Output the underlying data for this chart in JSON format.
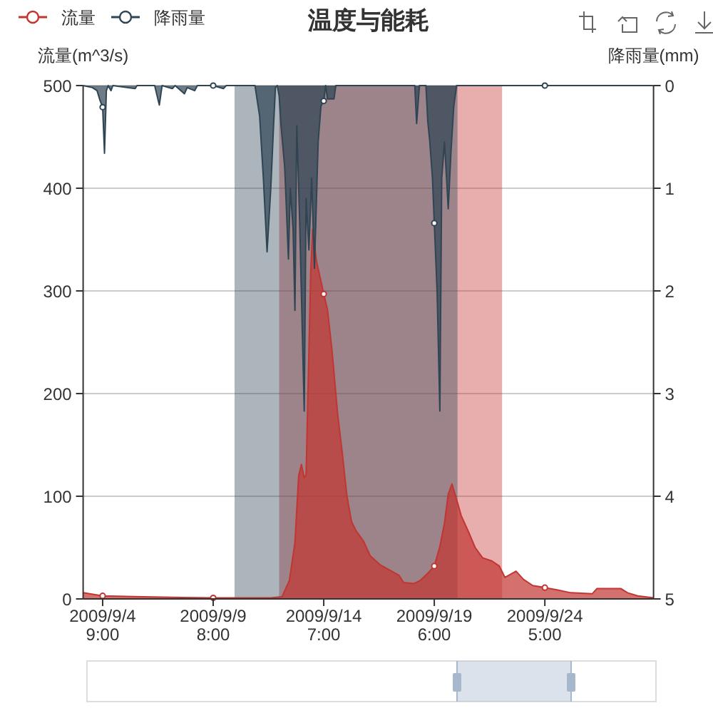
{
  "chart_data": {
    "type": "area",
    "title": "温度与能耗",
    "ylabel": "流量(m^3/s)",
    "y2label": "降雨量(mm)",
    "xlim": [
      "2009-09-03T12:00",
      "2009-09-29T02:00"
    ],
    "xticks": [
      {
        "value": "2009-09-04T09:00",
        "label": "2009/9/4\n9:00"
      },
      {
        "value": "2009-09-09T08:00",
        "label": "2009/9/9\n8:00"
      },
      {
        "value": "2009-09-14T07:00",
        "label": "2009/9/14\n7:00"
      },
      {
        "value": "2009-09-19T06:00",
        "label": "2009/9/19\n6:00"
      },
      {
        "value": "2009-09-24T05:00",
        "label": "2009/9/24\n5:00"
      }
    ],
    "ylim": [
      0,
      500
    ],
    "yticks": [
      0,
      100,
      200,
      300,
      400,
      500
    ],
    "y2lim": [
      5,
      0
    ],
    "y2ticks": [
      0,
      1,
      2,
      3,
      4,
      5
    ],
    "grid": "y",
    "legend": "top left",
    "bands": [
      {
        "axis": "x",
        "from": "2009-09-12T07:00",
        "to": "2009-09-22T07:00",
        "color": "#c23531"
      },
      {
        "axis": "x",
        "from": "2009-09-10T07:00",
        "to": "2009-09-20T07:00",
        "color": "#2f4554"
      }
    ],
    "series": [
      {
        "name": "流量",
        "color": "#c23531",
        "x": [
          "2009-09-03T12:00",
          "2009-09-04T09:00",
          "2009-09-06T04:00",
          "2009-09-09T08:00",
          "2009-09-11T22:00",
          "2009-09-12T10:00",
          "2009-09-12T18:00",
          "2009-09-13T00:00",
          "2009-09-13T04:00",
          "2009-09-13T07:00",
          "2009-09-13T10:00",
          "2009-09-13T12:00",
          "2009-09-13T15:00",
          "2009-09-13T17:00",
          "2009-09-13T19:00",
          "2009-09-13T23:00",
          "2009-09-14T07:00",
          "2009-09-14T11:00",
          "2009-09-14T16:00",
          "2009-09-14T22:00",
          "2009-09-15T03:00",
          "2009-09-15T08:00",
          "2009-09-15T13:00",
          "2009-09-15T18:00",
          "2009-09-16T02:00",
          "2009-09-16T09:00",
          "2009-09-16T20:00",
          "2009-09-17T06:00",
          "2009-09-17T16:00",
          "2009-09-17T21:00",
          "2009-09-18T08:00",
          "2009-09-18T15:00",
          "2009-09-18T23:00",
          "2009-09-19T06:00",
          "2009-09-19T12:00",
          "2009-09-19T17:00",
          "2009-09-19T21:00",
          "2009-09-20T01:00",
          "2009-09-20T05:00",
          "2009-09-20T11:00",
          "2009-09-20T19:00",
          "2009-09-21T02:00",
          "2009-09-21T10:00",
          "2009-09-21T20:00",
          "2009-09-22T04:00",
          "2009-09-22T10:00",
          "2009-09-22T22:00",
          "2009-09-23T06:00",
          "2009-09-23T16:00",
          "2009-09-24T05:00",
          "2009-09-24T17:00",
          "2009-09-25T09:00",
          "2009-09-26T08:00",
          "2009-09-26T13:00",
          "2009-09-27T15:00",
          "2009-09-27T22:00",
          "2009-09-28T09:00",
          "2009-09-29T02:00"
        ],
        "values": [
          6,
          3,
          2,
          1,
          1,
          2,
          18,
          55,
          120,
          131,
          118,
          121,
          241,
          319,
          360,
          330,
          297,
          282,
          241,
          180,
          142,
          100,
          75,
          66,
          56,
          42,
          33,
          28,
          23,
          16,
          15,
          18,
          25,
          32,
          51,
          74,
          102,
          112,
          100,
          81,
          65,
          50,
          40,
          37,
          32,
          21,
          27,
          19,
          13,
          11,
          9,
          6,
          5,
          10,
          10,
          6,
          3,
          1
        ]
      },
      {
        "name": "降雨量",
        "color": "#2f4554",
        "axis": "y2",
        "x": [
          "2009-09-03T12:00",
          "2009-09-03T22:00",
          "2009-09-04T03:00",
          "2009-09-04T06:00",
          "2009-09-04T09:00",
          "2009-09-04T11:00",
          "2009-09-04T13:00",
          "2009-09-04T15:00",
          "2009-09-04T18:00",
          "2009-09-04T20:00",
          "2009-09-05T20:00",
          "2009-09-05T22:00",
          "2009-09-06T17:00",
          "2009-09-06T22:00",
          "2009-09-07T01:00",
          "2009-09-07T12:00",
          "2009-09-07T15:00",
          "2009-09-08T01:00",
          "2009-09-08T04:00",
          "2009-09-08T12:00",
          "2009-09-08T15:00",
          "2009-09-09T08:00",
          "2009-09-09T19:00",
          "2009-09-09T22:00",
          "2009-09-11T05:00",
          "2009-09-11T10:00",
          "2009-09-11T14:00",
          "2009-09-11T18:00",
          "2009-09-11T22:00",
          "2009-09-12T01:00",
          "2009-09-12T03:00",
          "2009-09-12T05:00",
          "2009-09-12T07:00",
          "2009-09-12T09:00",
          "2009-09-12T13:00",
          "2009-09-12T17:00",
          "2009-09-12T19:00",
          "2009-09-12T22:00",
          "2009-09-13T00:00",
          "2009-09-13T02:00",
          "2009-09-13T05:00",
          "2009-09-13T10:00",
          "2009-09-13T12:00",
          "2009-09-13T15:00",
          "2009-09-13T18:00",
          "2009-09-13T21:00",
          "2009-09-14T01:00",
          "2009-09-14T04:00",
          "2009-09-14T07:00",
          "2009-09-14T09:00",
          "2009-09-14T11:00",
          "2009-09-14T18:00",
          "2009-09-14T20:00",
          "2009-09-18T09:00",
          "2009-09-18T11:00",
          "2009-09-18T14:00",
          "2009-09-18T21:00",
          "2009-09-18T23:00",
          "2009-09-19T01:00",
          "2009-09-19T04:00",
          "2009-09-19T06:00",
          "2009-09-19T09:00",
          "2009-09-19T12:00",
          "2009-09-19T14:00",
          "2009-09-19T17:00",
          "2009-09-19T21:00",
          "2009-09-20T00:00",
          "2009-09-20T03:00",
          "2009-09-20T06:00",
          "2009-09-24T05:00",
          "2009-09-29T02:00"
        ],
        "values": [
          0,
          0.02,
          0.05,
          0.14,
          0.21,
          0.66,
          0.05,
          0,
          0.05,
          0,
          0.03,
          0,
          0,
          0.19,
          0,
          0.03,
          0,
          0.08,
          0.02,
          0.05,
          0,
          0,
          0.03,
          0,
          0,
          0.3,
          0.9,
          1.62,
          1.0,
          0.39,
          0.02,
          0,
          0.1,
          0.39,
          0.8,
          1.69,
          1.0,
          1.4,
          2.19,
          0.39,
          1.3,
          3.17,
          1.1,
          1.6,
          0.9,
          1.78,
          0.55,
          0.2,
          0.15,
          0,
          0.13,
          0.13,
          0,
          0,
          0.37,
          0,
          0,
          0.35,
          0.53,
          0.9,
          1.34,
          2.0,
          3.17,
          0.9,
          0.55,
          1.2,
          0.64,
          0.2,
          0,
          0,
          0
        ]
      },
      {
        "type": "scatter",
        "color": "#c23531",
        "marker": "circle",
        "x": [
          "2009-09-04T09:00",
          "2009-09-09T08:00",
          "2009-09-14T07:00",
          "2009-09-19T06:00",
          "2009-09-24T05:00"
        ],
        "values": [
          3,
          1,
          297,
          32,
          11
        ]
      },
      {
        "type": "scatter",
        "color": "#2f4554",
        "marker": "circle",
        "axis": "y2",
        "x": [
          "2009-09-04T09:00",
          "2009-09-09T08:00",
          "2009-09-14T07:00",
          "2009-09-19T06:00",
          "2009-09-24T05:00"
        ],
        "values": [
          0.21,
          0,
          0.15,
          1.34,
          0
        ]
      }
    ]
  }
}
